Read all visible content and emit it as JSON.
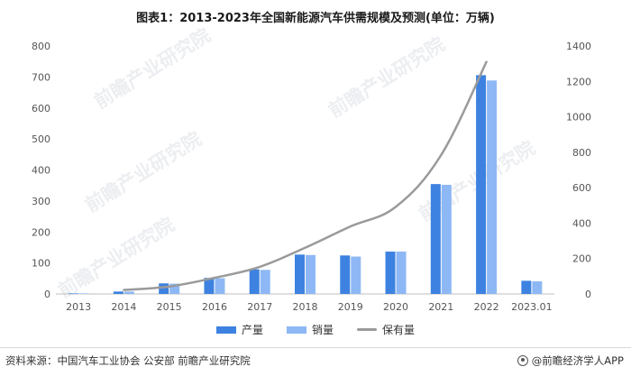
{
  "title": "图表1：2013-2023年全国新能源汽车供需规模及预测(单位：万辆)",
  "footer": {
    "source": "资料来源：中国汽车工业协会 公安部 前瞻产业研究院",
    "brand": "@前瞻经济学人APP"
  },
  "watermark": "前瞻产业研究院",
  "colors": {
    "production": "#3d82e0",
    "sales": "#8db8f5",
    "ownership": "#9a9a9a",
    "axis": "#bfbfbf",
    "tick_text": "#555555"
  },
  "chart_data": {
    "type": "bar",
    "categories": [
      "2013",
      "2014",
      "2015",
      "2016",
      "2017",
      "2018",
      "2019",
      "2020",
      "2021",
      "2022",
      "2023.01"
    ],
    "series": [
      {
        "name": "产量",
        "type": "bar",
        "axis": "left",
        "values": [
          1.8,
          7.8,
          34.1,
          51.7,
          79.4,
          127.0,
          124.2,
          136.6,
          354.5,
          705.8,
          42.5
        ]
      },
      {
        "name": "销量",
        "type": "bar",
        "axis": "left",
        "values": [
          1.8,
          7.5,
          33.1,
          50.7,
          77.7,
          125.6,
          120.6,
          136.7,
          352.1,
          688.7,
          40.8
        ]
      },
      {
        "name": "保有量",
        "type": "line",
        "axis": "right",
        "values": [
          null,
          22,
          42,
          91,
          153,
          261,
          381,
          492,
          784,
          1310,
          null
        ]
      }
    ],
    "y_left": {
      "ylim": [
        0,
        800
      ],
      "ticks": [
        0,
        100,
        200,
        300,
        400,
        500,
        600,
        700,
        800
      ]
    },
    "y_right": {
      "ylim": [
        0,
        1400
      ],
      "ticks": [
        0,
        200,
        400,
        600,
        800,
        1000,
        1200,
        1400
      ]
    },
    "legend": [
      "产量",
      "销量",
      "保有量"
    ],
    "legend_position": "bottom",
    "grid": false
  }
}
